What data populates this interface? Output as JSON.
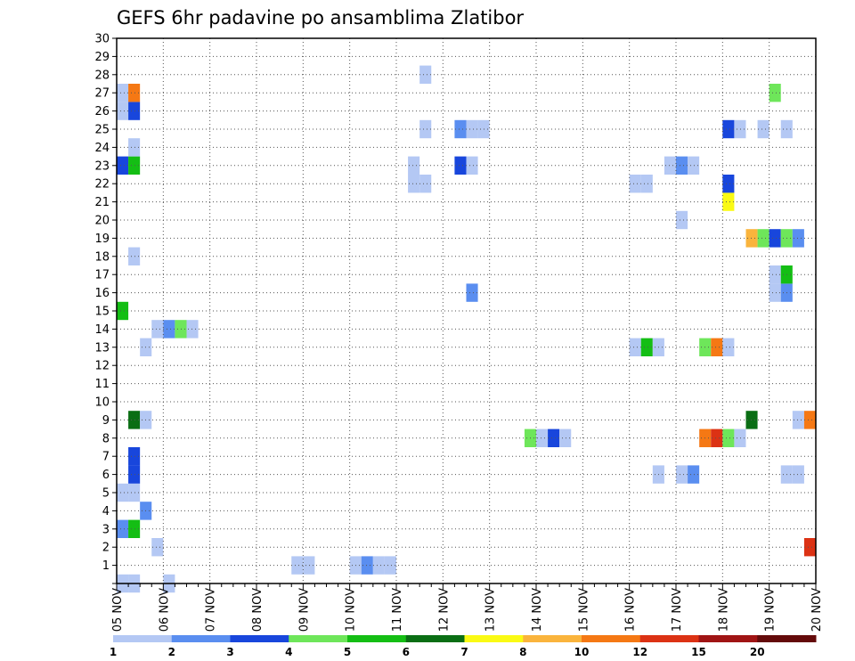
{
  "chart_data": {
    "type": "heatmap",
    "title": "GEFS 6hr padavine po ansamblima Zlatibor",
    "x_axis": {
      "start": "05 NOV",
      "end": "20 NOV",
      "step_hours": 6,
      "tick_labels": [
        "05 NOV",
        "06 NOV",
        "07 NOV",
        "08 NOV",
        "09 NOV",
        "10 NOV",
        "11 NOV",
        "12 NOV",
        "13 NOV",
        "14 NOV",
        "15 NOV",
        "16 NOV",
        "17 NOV",
        "18 NOV",
        "19 NOV",
        "20 NOV"
      ]
    },
    "y_axis": {
      "min": 0,
      "max": 30,
      "tick_labels": [
        "1",
        "2",
        "3",
        "4",
        "5",
        "6",
        "7",
        "8",
        "9",
        "10",
        "11",
        "12",
        "13",
        "14",
        "15",
        "16",
        "17",
        "18",
        "19",
        "20",
        "21",
        "22",
        "23",
        "24",
        "25",
        "26",
        "27",
        "28",
        "29",
        "30"
      ]
    },
    "grid": true,
    "colorbar": {
      "placement": "bottom",
      "labels": [
        "1",
        "2",
        "3",
        "4",
        "5",
        "6",
        "7",
        "8",
        "10",
        "12",
        "15",
        "20"
      ],
      "colors": [
        "#b4c8f4",
        "#5a8ef0",
        "#1846dc",
        "#6ee65a",
        "#14be14",
        "#0a6e14",
        "#fafa14",
        "#fab43c",
        "#f57814",
        "#dc3214",
        "#a01414",
        "#640a0a"
      ]
    },
    "cells": [
      {
        "t": 0,
        "m": 0,
        "c": 1
      },
      {
        "t": 1,
        "m": 0,
        "c": 1
      },
      {
        "t": 4,
        "m": 0,
        "c": 1
      },
      {
        "t": 15,
        "m": 1,
        "c": 1
      },
      {
        "t": 16,
        "m": 1,
        "c": 1
      },
      {
        "t": 20,
        "m": 1,
        "c": 1
      },
      {
        "t": 21,
        "m": 1,
        "c": 2
      },
      {
        "t": 22,
        "m": 1,
        "c": 1
      },
      {
        "t": 23,
        "m": 1,
        "c": 1
      },
      {
        "t": 3,
        "m": 2,
        "c": 1
      },
      {
        "t": 59,
        "m": 2,
        "c": 10
      },
      {
        "t": 0,
        "m": 3,
        "c": 2
      },
      {
        "t": 1,
        "m": 3,
        "c": 5
      },
      {
        "t": 2,
        "m": 4,
        "c": 2
      },
      {
        "t": 0,
        "m": 5,
        "c": 1
      },
      {
        "t": 1,
        "m": 5,
        "c": 1
      },
      {
        "t": 1,
        "m": 6,
        "c": 3
      },
      {
        "t": 46,
        "m": 6,
        "c": 1
      },
      {
        "t": 48,
        "m": 6,
        "c": 1
      },
      {
        "t": 49,
        "m": 6,
        "c": 2
      },
      {
        "t": 57,
        "m": 6,
        "c": 1
      },
      {
        "t": 58,
        "m": 6,
        "c": 1
      },
      {
        "t": 1,
        "m": 7,
        "c": 3
      },
      {
        "t": 35,
        "m": 8,
        "c": 4
      },
      {
        "t": 36,
        "m": 8,
        "c": 1
      },
      {
        "t": 37,
        "m": 8,
        "c": 3
      },
      {
        "t": 38,
        "m": 8,
        "c": 1
      },
      {
        "t": 50,
        "m": 8,
        "c": 9
      },
      {
        "t": 51,
        "m": 8,
        "c": 10
      },
      {
        "t": 52,
        "m": 8,
        "c": 4
      },
      {
        "t": 53,
        "m": 8,
        "c": 1
      },
      {
        "t": 1,
        "m": 9,
        "c": 6
      },
      {
        "t": 2,
        "m": 9,
        "c": 1
      },
      {
        "t": 54,
        "m": 9,
        "c": 6
      },
      {
        "t": 58,
        "m": 9,
        "c": 1
      },
      {
        "t": 59,
        "m": 9,
        "c": 9
      },
      {
        "t": 2,
        "m": 13,
        "c": 1
      },
      {
        "t": 44,
        "m": 13,
        "c": 1
      },
      {
        "t": 45,
        "m": 13,
        "c": 5
      },
      {
        "t": 46,
        "m": 13,
        "c": 1
      },
      {
        "t": 50,
        "m": 13,
        "c": 4
      },
      {
        "t": 51,
        "m": 13,
        "c": 9
      },
      {
        "t": 52,
        "m": 13,
        "c": 1
      },
      {
        "t": 3,
        "m": 14,
        "c": 1
      },
      {
        "t": 4,
        "m": 14,
        "c": 2
      },
      {
        "t": 5,
        "m": 14,
        "c": 4
      },
      {
        "t": 6,
        "m": 14,
        "c": 1
      },
      {
        "t": 0,
        "m": 15,
        "c": 5
      },
      {
        "t": 30,
        "m": 16,
        "c": 2
      },
      {
        "t": 56,
        "m": 16,
        "c": 1
      },
      {
        "t": 57,
        "m": 16,
        "c": 2
      },
      {
        "t": 56,
        "m": 17,
        "c": 1
      },
      {
        "t": 57,
        "m": 17,
        "c": 5
      },
      {
        "t": 1,
        "m": 18,
        "c": 1
      },
      {
        "t": 54,
        "m": 19,
        "c": 8
      },
      {
        "t": 55,
        "m": 19,
        "c": 4
      },
      {
        "t": 56,
        "m": 19,
        "c": 3
      },
      {
        "t": 57,
        "m": 19,
        "c": 4
      },
      {
        "t": 58,
        "m": 19,
        "c": 2
      },
      {
        "t": 48,
        "m": 20,
        "c": 1
      },
      {
        "t": 52,
        "m": 21,
        "c": 7
      },
      {
        "t": 25,
        "m": 22,
        "c": 1
      },
      {
        "t": 26,
        "m": 22,
        "c": 1
      },
      {
        "t": 44,
        "m": 22,
        "c": 1
      },
      {
        "t": 45,
        "m": 22,
        "c": 1
      },
      {
        "t": 52,
        "m": 22,
        "c": 3
      },
      {
        "t": 0,
        "m": 23,
        "c": 3
      },
      {
        "t": 1,
        "m": 23,
        "c": 5
      },
      {
        "t": 25,
        "m": 23,
        "c": 1
      },
      {
        "t": 29,
        "m": 23,
        "c": 3
      },
      {
        "t": 30,
        "m": 23,
        "c": 1
      },
      {
        "t": 47,
        "m": 23,
        "c": 1
      },
      {
        "t": 48,
        "m": 23,
        "c": 2
      },
      {
        "t": 49,
        "m": 23,
        "c": 1
      },
      {
        "t": 1,
        "m": 24,
        "c": 1
      },
      {
        "t": 26,
        "m": 25,
        "c": 1
      },
      {
        "t": 29,
        "m": 25,
        "c": 2
      },
      {
        "t": 30,
        "m": 25,
        "c": 1
      },
      {
        "t": 31,
        "m": 25,
        "c": 1
      },
      {
        "t": 52,
        "m": 25,
        "c": 3
      },
      {
        "t": 53,
        "m": 25,
        "c": 1
      },
      {
        "t": 55,
        "m": 25,
        "c": 1
      },
      {
        "t": 57,
        "m": 25,
        "c": 1
      },
      {
        "t": 0,
        "m": 26,
        "c": 1
      },
      {
        "t": 1,
        "m": 26,
        "c": 3
      },
      {
        "t": 0,
        "m": 27,
        "c": 1
      },
      {
        "t": 1,
        "m": 27,
        "c": 9
      },
      {
        "t": 56,
        "m": 27,
        "c": 4
      },
      {
        "t": 26,
        "m": 28,
        "c": 1
      }
    ]
  }
}
